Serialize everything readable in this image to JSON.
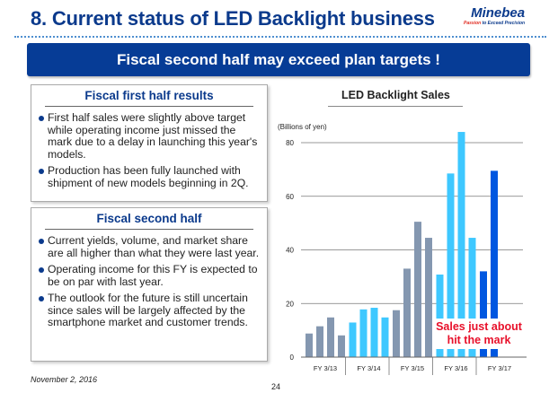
{
  "header": {
    "title": "8. Current status of LED Backlight business",
    "logo_name": "Minebea",
    "logo_tagline_highlight": "Passion",
    "logo_tagline_rest": " to Exceed Precision"
  },
  "banner": "Fiscal second half may exceed plan targets !",
  "first_half": {
    "heading": "Fiscal first half results",
    "bullets": [
      "First half sales were slightly above target while operating income just missed the mark due to a delay in launching this year's models.",
      "Production has been fully launched with shipment of new models beginning in 2Q."
    ]
  },
  "second_half": {
    "heading": "Fiscal second half",
    "bullets": [
      "Current yields, volume, and market share are all higher than what they were last year.",
      "Operating income for this FY is expected to be on par with last year.",
      "The outlook for the future is still uncertain since sales will be largely affected by the smartphone market and customer trends."
    ]
  },
  "chart_data": {
    "type": "bar",
    "title": "LED Backlight Sales",
    "ylabel": "(Billions of yen)",
    "ylim": [
      0,
      80
    ],
    "yticks": [
      "0",
      "20",
      "40",
      "60",
      "80"
    ],
    "grid": true,
    "categories": [
      "FY 3/13",
      "FY 3/14",
      "FY 3/15",
      "FY 3/16",
      "FY 3/17"
    ],
    "quarterly_values": [
      [
        8.8,
        11.5,
        14.8,
        8.1
      ],
      [
        12.9,
        17.8,
        18.4,
        14.8
      ],
      [
        17.5,
        33,
        50.5,
        44.5
      ],
      [
        30.8,
        68.5,
        84,
        44.5
      ],
      [
        32,
        69.5
      ]
    ],
    "group_colors": [
      "#8497b0",
      "#3ec8ff",
      "#8497b0",
      "#3ec8ff",
      "#0057e0"
    ],
    "annotation": "Sales just about hit the mark",
    "annotation_color": "#e8102a"
  },
  "footer": {
    "date": "November 2, 2016",
    "page": "24"
  }
}
